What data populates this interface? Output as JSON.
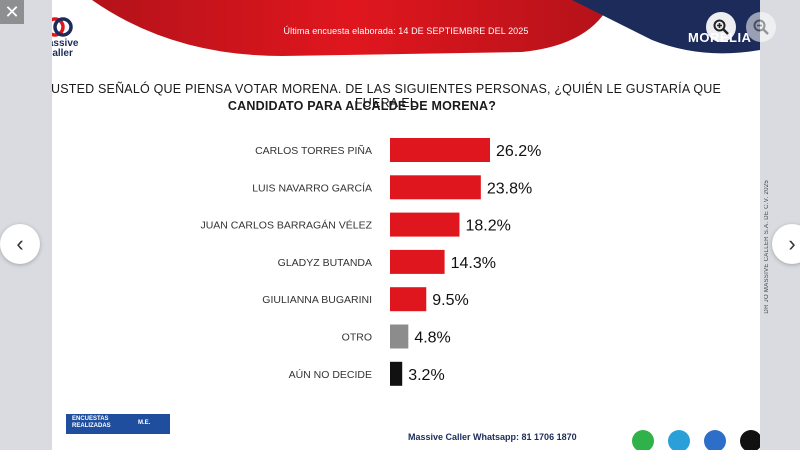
{
  "banner": {
    "date_text": "Última encuesta elaborada: 14 DE SEPTIEMBRE DEL 2025",
    "city": "MORELIA",
    "colors": {
      "red": "#d41820",
      "navy": "#1c2b5a"
    }
  },
  "logo": {
    "text_line1": "Massive",
    "text_line2": "Caller"
  },
  "question": {
    "line1": "USTED SEÑALÓ QUE PIENSA VOTAR MORENA. DE LAS SIGUIENTES PERSONAS, ¿QUIÉN LE GUSTARÍA QUE FUERA EL",
    "line2": "CANDIDATO PARA ALCALDE DE MORENA?"
  },
  "chart_data": {
    "type": "bar",
    "orientation": "horizontal",
    "categories": [
      "CARLOS TORRES PIÑA",
      "LUIS NAVARRO GARCÍA",
      "JUAN CARLOS BARRAGÁN VÉLEZ",
      "GLADYZ BUTANDA",
      "GIULIANNA BUGARINI",
      "OTRO",
      "AÚN NO DECIDE"
    ],
    "values": [
      26.2,
      23.8,
      18.2,
      14.3,
      9.5,
      4.8,
      3.2
    ],
    "value_labels": [
      "26.2%",
      "23.8%",
      "18.2%",
      "14.3%",
      "9.5%",
      "4.8%",
      "3.2%"
    ],
    "colors": [
      "#e0161e",
      "#e0161e",
      "#e0161e",
      "#e0161e",
      "#e0161e",
      "#8c8c8c",
      "#111111"
    ],
    "title": "",
    "xlabel": "",
    "ylabel": "",
    "grid": false
  },
  "badge": {
    "line1": "ENCUESTAS",
    "line2": "REALIZADAS",
    "right": "M.E."
  },
  "footer": {
    "text": "Massive Caller Whatsapp: 81 1706 1870"
  },
  "side_text": "DR JO MASSIVE CALLER S.A. DE C.V. 2025",
  "viewer": {
    "close_icon": "close-icon",
    "prev_icon": "chevron-left-icon",
    "next_icon": "chevron-right-icon",
    "zoom_in_icon": "zoom-in-icon",
    "zoom_out_icon": "zoom-out-icon"
  }
}
